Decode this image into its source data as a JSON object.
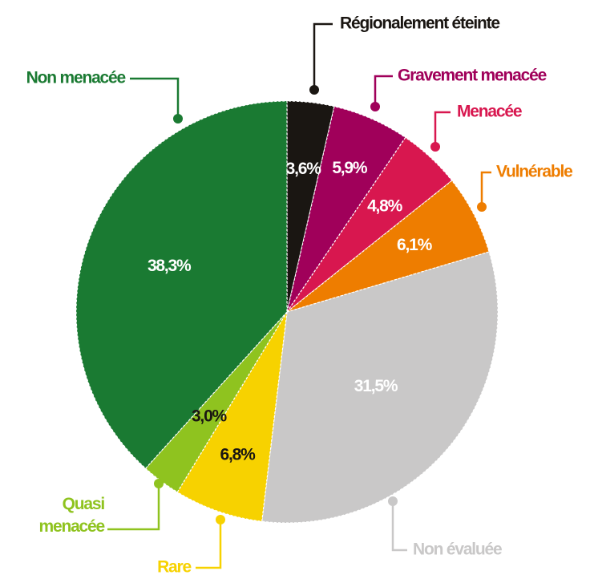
{
  "chart_data": {
    "type": "pie",
    "categories": [
      "Régionalement éteinte",
      "Gravement menacée",
      "Menacée",
      "Vulnérable",
      "Non évaluée",
      "Rare",
      "Quasi menacée",
      "Non menacée"
    ],
    "values": [
      3.6,
      5.9,
      4.8,
      6.1,
      31.5,
      6.8,
      3.0,
      38.3
    ],
    "value_labels": [
      "3,6%",
      "5,9%",
      "4,8%",
      "6,1%",
      "31,5%",
      "6,8%",
      "3,0%",
      "38,3%"
    ],
    "colors": [
      "#1a1612",
      "#a0005a",
      "#d8174f",
      "#ee7d00",
      "#c9c8c8",
      "#f7d200",
      "#8fc31f",
      "#1a7a32"
    ]
  }
}
